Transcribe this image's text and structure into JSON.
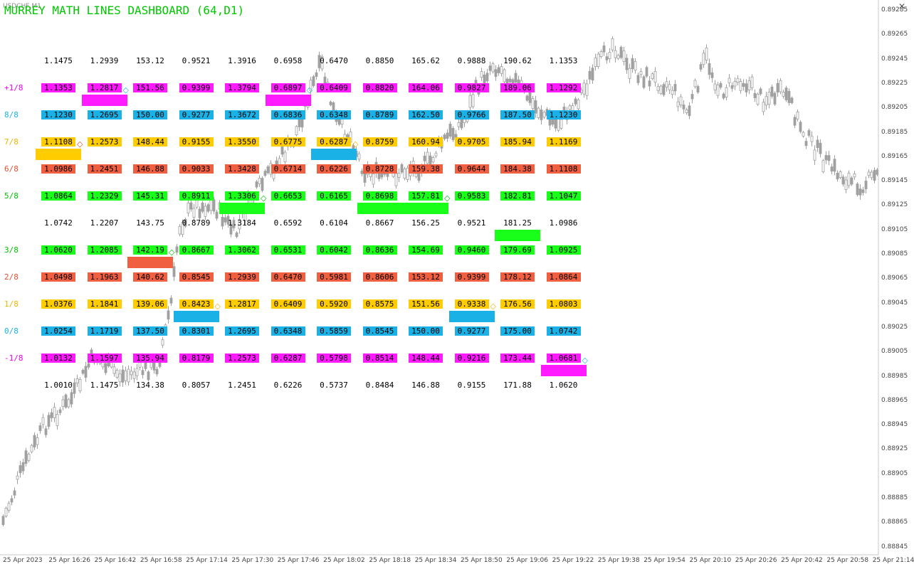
{
  "chart": {
    "symbol": "USDCHF,M1",
    "price_scale": [
      "0.89285",
      "0.89265",
      "0.89245",
      "0.89225",
      "0.89205",
      "0.89185",
      "0.89165",
      "0.89145",
      "0.89125",
      "0.89105",
      "0.89085",
      "0.89065",
      "0.89045",
      "0.89025",
      "0.89005",
      "0.88985",
      "0.88965",
      "0.88945",
      "0.88925",
      "0.88905",
      "0.88885",
      "0.88865",
      "0.88845"
    ],
    "time_scale": [
      "25 Apr 2023",
      "25 Apr 16:26",
      "25 Apr 16:42",
      "25 Apr 16:58",
      "25 Apr 17:14",
      "25 Apr 17:30",
      "25 Apr 17:46",
      "25 Apr 18:02",
      "25 Apr 18:18",
      "25 Apr 18:34",
      "25 Apr 18:50",
      "25 Apr 19:06",
      "25 Apr 19:22",
      "25 Apr 19:38",
      "25 Apr 19:54",
      "25 Apr 20:10",
      "25 Apr 20:26",
      "25 Apr 20:42",
      "25 Apr 20:58",
      "25 Apr 21:14"
    ],
    "colors": {
      "candle": "#a0a0a0",
      "grid_axis": "#c8c8c8",
      "text": "#444444"
    },
    "close_icon": "✕"
  },
  "dashboard": {
    "title": "MURREY MATH LINES DASHBOARD (64,D1)",
    "title_color": "#00c800",
    "row_labels": [
      {
        "text": "",
        "color": "#000000"
      },
      {
        "text": "+1/8",
        "color": "#e600e6"
      },
      {
        "text": "8/8",
        "color": "#1ab2e6"
      },
      {
        "text": "7/8",
        "color": "#f0b400"
      },
      {
        "text": "6/8",
        "color": "#e05030"
      },
      {
        "text": "5/8",
        "color": "#00c000"
      },
      {
        "text": "",
        "color": "#000000"
      },
      {
        "text": "3/8",
        "color": "#00c000"
      },
      {
        "text": "2/8",
        "color": "#e05030"
      },
      {
        "text": "1/8",
        "color": "#f0b400"
      },
      {
        "text": "0/8",
        "color": "#1ab2e6"
      },
      {
        "text": "-1/8",
        "color": "#e600e6"
      },
      {
        "text": "",
        "color": "#000000"
      }
    ],
    "row_bg": [
      "",
      "#ff1aff",
      "#1ab2e6",
      "#ffcc00",
      "#f06040",
      "#1aff1a",
      "",
      "#1aff1a",
      "#f06040",
      "#ffcc00",
      "#1ab2e6",
      "#ff1aff",
      ""
    ],
    "columns": [
      [
        "1.1475",
        "1.1353",
        "1.1230",
        "1.1108",
        "1.0986",
        "1.0864",
        "1.0742",
        "1.0620",
        "1.0498",
        "1.0376",
        "1.0254",
        "1.0132",
        "1.0010"
      ],
      [
        "1.2939",
        "1.2817",
        "1.2695",
        "1.2573",
        "1.2451",
        "1.2329",
        "1.2207",
        "1.2085",
        "1.1963",
        "1.1841",
        "1.1719",
        "1.1597",
        "1.1475"
      ],
      [
        "153.12",
        "151.56",
        "150.00",
        "148.44",
        "146.88",
        "145.31",
        "143.75",
        "142.19",
        "140.62",
        "139.06",
        "137.50",
        "135.94",
        "134.38"
      ],
      [
        "0.9521",
        "0.9399",
        "0.9277",
        "0.9155",
        "0.9033",
        "0.8911",
        "0.8789",
        "0.8667",
        "0.8545",
        "0.8423",
        "0.8301",
        "0.8179",
        "0.8057"
      ],
      [
        "1.3916",
        "1.3794",
        "1.3672",
        "1.3550",
        "1.3428",
        "1.3306",
        "1.3184",
        "1.3062",
        "1.2939",
        "1.2817",
        "1.2695",
        "1.2573",
        "1.2451"
      ],
      [
        "0.6958",
        "0.6897",
        "0.6836",
        "0.6775",
        "0.6714",
        "0.6653",
        "0.6592",
        "0.6531",
        "0.6470",
        "0.6409",
        "0.6348",
        "0.6287",
        "0.6226"
      ],
      [
        "0.6470",
        "0.6409",
        "0.6348",
        "0.6287",
        "0.6226",
        "0.6165",
        "0.6104",
        "0.6042",
        "0.5981",
        "0.5920",
        "0.5859",
        "0.5798",
        "0.5737"
      ],
      [
        "0.8850",
        "0.8820",
        "0.8789",
        "0.8759",
        "0.8728",
        "0.8698",
        "0.8667",
        "0.8636",
        "0.8606",
        "0.8575",
        "0.8545",
        "0.8514",
        "0.8484"
      ],
      [
        "165.62",
        "164.06",
        "162.50",
        "160.94",
        "159.38",
        "157.81",
        "156.25",
        "154.69",
        "153.12",
        "151.56",
        "150.00",
        "148.44",
        "146.88"
      ],
      [
        "0.9888",
        "0.9827",
        "0.9766",
        "0.9705",
        "0.9644",
        "0.9583",
        "0.9521",
        "0.9460",
        "0.9399",
        "0.9338",
        "0.9277",
        "0.9216",
        "0.9155"
      ],
      [
        "190.62",
        "189.06",
        "187.50",
        "185.94",
        "184.38",
        "182.81",
        "181.25",
        "179.69",
        "178.12",
        "176.56",
        "175.00",
        "173.44",
        "171.88"
      ],
      [
        "1.1353",
        "1.1292",
        "1.1230",
        "1.1169",
        "1.1108",
        "1.1047",
        "1.0986",
        "1.0925",
        "1.0864",
        "1.0803",
        "1.0742",
        "1.0681",
        "1.0620"
      ]
    ],
    "current_markers": [
      {
        "column": 0,
        "after_row": 3,
        "color": "#ffcc00",
        "diamond": "◇",
        "diamond_color": "#e05030"
      },
      {
        "column": 1,
        "after_row": 1,
        "color": "#ff1aff",
        "diamond": "◇",
        "diamond_color": "#1ab2e6"
      },
      {
        "column": 2,
        "after_row": 7,
        "color": "#f06040",
        "diamond": "◇",
        "diamond_color": "#00c000"
      },
      {
        "column": 3,
        "after_row": 9,
        "color": "#1ab2e6",
        "diamond": "◇",
        "diamond_color": "#f0b400"
      },
      {
        "column": 4,
        "after_row": 5,
        "color": "#1aff1a",
        "diamond": "◇",
        "diamond_color": "#00c000"
      },
      {
        "column": 5,
        "after_row": 1,
        "color": "#ff1aff",
        "diamond": "◇",
        "diamond_color": "#1ab2e6"
      },
      {
        "column": 6,
        "after_row": 3,
        "color": "#1ab2e6",
        "diamond": "◇",
        "diamond_color": "#f0b400"
      },
      {
        "column": 7,
        "after_row": 5,
        "color": "#1aff1a",
        "diamond": "",
        "diamond_color": "#00c000"
      },
      {
        "column": 8,
        "after_row": 5,
        "color": "#1aff1a",
        "diamond": "◇",
        "diamond_color": "#00c000"
      },
      {
        "column": 9,
        "after_row": 9,
        "color": "#1ab2e6",
        "diamond": "◇",
        "diamond_color": "#f0b400"
      },
      {
        "column": 10,
        "after_row": 6,
        "color": "#1aff1a",
        "diamond": "",
        "diamond_color": "#00c000"
      },
      {
        "column": 11,
        "after_row": 11,
        "color": "#ff1aff",
        "diamond": "◇",
        "diamond_color": "#1ab2e6"
      }
    ]
  }
}
